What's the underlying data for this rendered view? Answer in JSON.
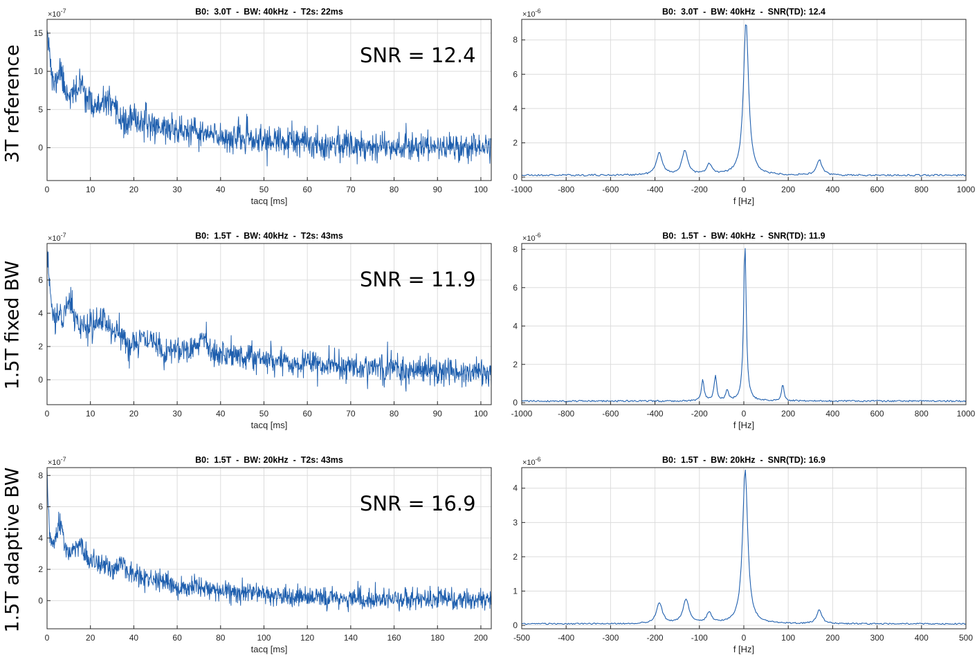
{
  "figure": {
    "row_labels": [
      "3T reference",
      "1.5T fixed BW",
      "1.5T adaptive BW"
    ]
  },
  "colors": {
    "line": "#1f5fae",
    "grid": "#dcdcdc",
    "axis": "#262626",
    "text": "#262626"
  },
  "chart_data": [
    {
      "id": "td_3T",
      "type": "line",
      "domain": "time",
      "title": "B0:  3.0T  -  BW: 40kHz  -  T2s: 22ms",
      "xlabel": "tacq [ms]",
      "ylabel": "",
      "exponent": "×10",
      "exponent_power": "-7",
      "xlim": [
        0,
        102.4
      ],
      "ylim": [
        -4.3,
        16.8
      ],
      "xticks": [
        0,
        10,
        20,
        30,
        40,
        50,
        60,
        70,
        80,
        90,
        100
      ],
      "yticks": [
        0,
        5,
        10,
        15
      ],
      "annotation": "SNR = 12.4",
      "signal": {
        "n": 1200,
        "amplitude": 9,
        "t2_ms": 22,
        "noise_sd": 0.95,
        "seed": 11,
        "start": 16.5
      },
      "bumps": [
        [
          3,
          0.7,
          2.5
        ],
        [
          8,
          1.2,
          2.0
        ],
        [
          14,
          1.0,
          1.5
        ],
        [
          18,
          0.8,
          -1.0
        ]
      ]
    },
    {
      "id": "fd_3T",
      "type": "line",
      "domain": "frequency",
      "title": "B0:  3.0T  -  BW: 40kHz  -  SNR(TD): 12.4",
      "xlabel": "f [Hz]",
      "ylabel": "",
      "exponent": "×10",
      "exponent_power": "-6",
      "xlim": [
        -1000,
        1000
      ],
      "ylim": [
        -0.2,
        9.2
      ],
      "xticks": [
        -1000,
        -800,
        -600,
        -400,
        -200,
        0,
        200,
        400,
        600,
        800,
        1000
      ],
      "yticks": [
        0,
        2,
        4,
        6,
        8
      ],
      "peaks": [
        {
          "f": 10,
          "height": 9.0,
          "width": 14
        },
        {
          "f": -380,
          "height": 1.3,
          "width": 16
        },
        {
          "f": -265,
          "height": 1.4,
          "width": 16
        },
        {
          "f": -155,
          "height": 0.6,
          "width": 14
        },
        {
          "f": 340,
          "height": 0.9,
          "width": 14
        }
      ],
      "noise": {
        "level": 0.1,
        "n": 400,
        "seed": 21
      }
    },
    {
      "id": "td_15T_fixed",
      "type": "line",
      "domain": "time",
      "title": "B0:  1.5T  -  BW: 40kHz  -  T2s: 43ms",
      "xlabel": "tacq [ms]",
      "ylabel": "",
      "exponent": "×10",
      "exponent_power": "-7",
      "xlim": [
        0,
        102.4
      ],
      "ylim": [
        -1.5,
        8.2
      ],
      "xticks": [
        0,
        10,
        20,
        30,
        40,
        50,
        60,
        70,
        80,
        90,
        100
      ],
      "yticks": [
        0,
        2,
        4,
        6
      ],
      "annotation": "SNR = 11.9",
      "signal": {
        "n": 1200,
        "amplitude": 4.0,
        "t2_ms": 43,
        "noise_sd": 0.42,
        "seed": 31,
        "start": 7.6
      },
      "bumps": [
        [
          5,
          1.0,
          1.3
        ],
        [
          13,
          1.5,
          0.7
        ],
        [
          27,
          1.4,
          -0.6
        ],
        [
          36,
          1.2,
          1.0
        ],
        [
          19,
          1.2,
          -0.5
        ]
      ]
    },
    {
      "id": "fd_15T_fixed",
      "type": "line",
      "domain": "frequency",
      "title": "B0:  1.5T  -  BW: 40kHz  -  SNR(TD): 11.9",
      "xlabel": "f [Hz]",
      "ylabel": "",
      "exponent": "×10",
      "exponent_power": "-6",
      "xlim": [
        -1000,
        1000
      ],
      "ylim": [
        -0.1,
        8.3
      ],
      "xticks": [
        -1000,
        -800,
        -600,
        -400,
        -200,
        0,
        200,
        400,
        600,
        800,
        1000
      ],
      "yticks": [
        0,
        2,
        4,
        6,
        8
      ],
      "peaks": [
        {
          "f": 5,
          "height": 8.2,
          "width": 7
        },
        {
          "f": -185,
          "height": 1.1,
          "width": 7
        },
        {
          "f": -128,
          "height": 1.3,
          "width": 7
        },
        {
          "f": -75,
          "height": 0.55,
          "width": 7
        },
        {
          "f": 175,
          "height": 0.85,
          "width": 7
        }
      ],
      "noise": {
        "level": 0.08,
        "n": 480,
        "seed": 41
      }
    },
    {
      "id": "td_15T_adaptive",
      "type": "line",
      "domain": "time",
      "title": "B0:  1.5T  -  BW: 20kHz  -  T2s: 43ms",
      "xlabel": "tacq [ms]",
      "ylabel": "",
      "exponent": "×10",
      "exponent_power": "-7",
      "xlim": [
        0,
        204.8
      ],
      "ylim": [
        -1.8,
        8.5
      ],
      "xticks": [
        0,
        20,
        40,
        60,
        80,
        100,
        120,
        140,
        160,
        180,
        200
      ],
      "yticks": [
        0,
        2,
        4,
        6,
        8
      ],
      "annotation": "SNR = 16.9",
      "signal": {
        "n": 1300,
        "amplitude": 4.0,
        "t2_ms": 43,
        "noise_sd": 0.33,
        "seed": 51,
        "start": 7.8
      },
      "bumps": [
        [
          6,
          1.5,
          1.4
        ],
        [
          15,
          2.5,
          0.8
        ],
        [
          35,
          2.5,
          0.6
        ],
        [
          60,
          3,
          -0.3
        ]
      ]
    },
    {
      "id": "fd_15T_adaptive",
      "type": "line",
      "domain": "frequency",
      "title": "B0:  1.5T  -  BW: 20kHz  -  SNR(TD): 16.9",
      "xlabel": "f [Hz]",
      "ylabel": "",
      "exponent": "×10",
      "exponent_power": "-6",
      "xlim": [
        -500,
        500
      ],
      "ylim": [
        -0.1,
        4.6
      ],
      "xticks": [
        -500,
        -400,
        -300,
        -200,
        -100,
        0,
        100,
        200,
        300,
        400,
        500
      ],
      "yticks": [
        0,
        1,
        2,
        3,
        4
      ],
      "peaks": [
        {
          "f": 3,
          "height": 4.5,
          "width": 7
        },
        {
          "f": -190,
          "height": 0.6,
          "width": 8
        },
        {
          "f": -130,
          "height": 0.7,
          "width": 8
        },
        {
          "f": -78,
          "height": 0.3,
          "width": 7
        },
        {
          "f": 170,
          "height": 0.4,
          "width": 7
        }
      ],
      "noise": {
        "level": 0.04,
        "n": 420,
        "seed": 61
      }
    }
  ]
}
